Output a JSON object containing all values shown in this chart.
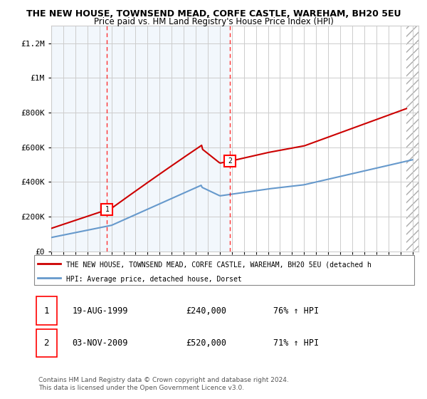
{
  "title": "THE NEW HOUSE, TOWNSEND MEAD, CORFE CASTLE, WAREHAM, BH20 5EU",
  "subtitle": "Price paid vs. HM Land Registry's House Price Index (HPI)",
  "ylim": [
    0,
    1300000
  ],
  "yticks": [
    0,
    200000,
    400000,
    600000,
    800000,
    1000000,
    1200000
  ],
  "ytick_labels": [
    "£0",
    "£200K",
    "£400K",
    "£600K",
    "£800K",
    "£1M",
    "£1.2M"
  ],
  "x_start_year": 1995,
  "x_end_year": 2025,
  "transaction1": {
    "year": 1999.63,
    "price": 240000,
    "label": "1",
    "date": "19-AUG-1999",
    "hpi_change": "76% ↑ HPI"
  },
  "transaction2": {
    "year": 2009.84,
    "price": 520000,
    "label": "2",
    "date": "03-NOV-2009",
    "hpi_change": "71% ↑ HPI"
  },
  "red_line_color": "#cc0000",
  "blue_line_color": "#6699cc",
  "grid_color": "#cccccc",
  "shaded_color": "#ddeeff",
  "legend_line1": "THE NEW HOUSE, TOWNSEND MEAD, CORFE CASTLE, WAREHAM, BH20 5EU (detached h",
  "legend_line2": "HPI: Average price, detached house, Dorset",
  "footer1": "Contains HM Land Registry data © Crown copyright and database right 2024.",
  "footer2": "This data is licensed under the Open Government Licence v3.0.",
  "background_color": "#ffffff"
}
